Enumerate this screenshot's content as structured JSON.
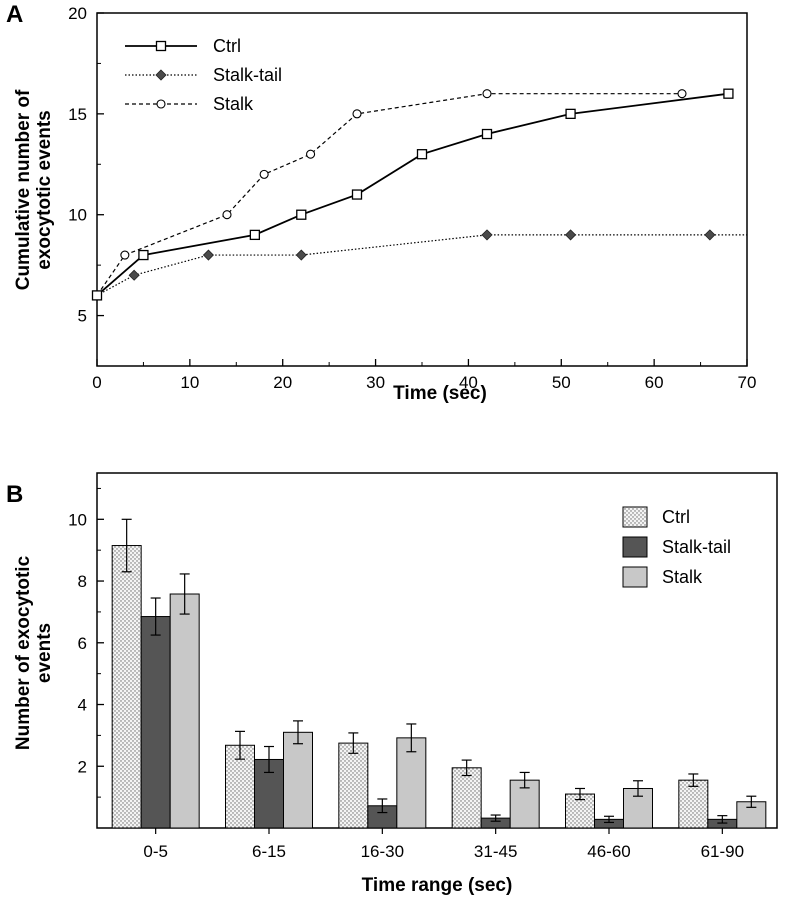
{
  "chart_data": [
    {
      "panel": "A",
      "type": "line",
      "xlabel": "Time  (sec)",
      "ylabel_lines": [
        "Cumulative number of",
        "exocytotic  events"
      ],
      "xlim": [
        0,
        70
      ],
      "ylim": [
        2.5,
        20
      ],
      "xticks": [
        0,
        10,
        20,
        30,
        40,
        50,
        60,
        70
      ],
      "yticks": [
        5,
        10,
        15,
        20
      ],
      "grid": false,
      "legend_position": "top-left",
      "series": [
        {
          "name": "Ctrl",
          "marker": "open-square",
          "linestyle": "solid",
          "x": [
            0,
            5,
            17,
            22,
            28,
            35,
            42,
            51,
            68
          ],
          "y": [
            6,
            8,
            9,
            10,
            11,
            13,
            14,
            15,
            16
          ]
        },
        {
          "name": "Stalk-tail",
          "marker": "filled-diamond",
          "linestyle": "dotted",
          "x": [
            0,
            4,
            12,
            22,
            42,
            51,
            66,
            70
          ],
          "y": [
            6,
            7,
            8,
            8,
            9,
            9,
            9,
            9
          ]
        },
        {
          "name": "Stalk",
          "marker": "open-circle",
          "linestyle": "dashed",
          "x": [
            0,
            3,
            14,
            18,
            23,
            28,
            42,
            63
          ],
          "y": [
            6,
            8,
            10,
            12,
            13,
            15,
            16,
            16
          ]
        }
      ]
    },
    {
      "panel": "B",
      "type": "bar",
      "xlabel": "Time  range  (sec)",
      "ylabel_lines": [
        "Number of exocytotic",
        "events"
      ],
      "ylim": [
        0,
        11.5
      ],
      "yticks": [
        2,
        4,
        6,
        8,
        10
      ],
      "grid": false,
      "legend_position": "top-right",
      "categories": [
        "0-5",
        "6-15",
        "16-30",
        "31-45",
        "46-60",
        "61-90"
      ],
      "series": [
        {
          "name": "Ctrl",
          "fill": "dotted-light",
          "values": [
            9.15,
            2.68,
            2.75,
            1.95,
            1.1,
            1.55
          ],
          "errors": [
            0.85,
            0.45,
            0.33,
            0.25,
            0.18,
            0.2
          ]
        },
        {
          "name": "Stalk-tail",
          "fill": "dark-gray",
          "values": [
            6.85,
            2.22,
            0.72,
            0.32,
            0.28,
            0.28
          ],
          "errors": [
            0.6,
            0.42,
            0.22,
            0.1,
            0.1,
            0.12
          ]
        },
        {
          "name": "Stalk",
          "fill": "light-gray",
          "values": [
            7.58,
            3.1,
            2.92,
            1.55,
            1.28,
            0.85
          ],
          "errors": [
            0.65,
            0.37,
            0.45,
            0.25,
            0.25,
            0.18
          ]
        }
      ]
    }
  ]
}
